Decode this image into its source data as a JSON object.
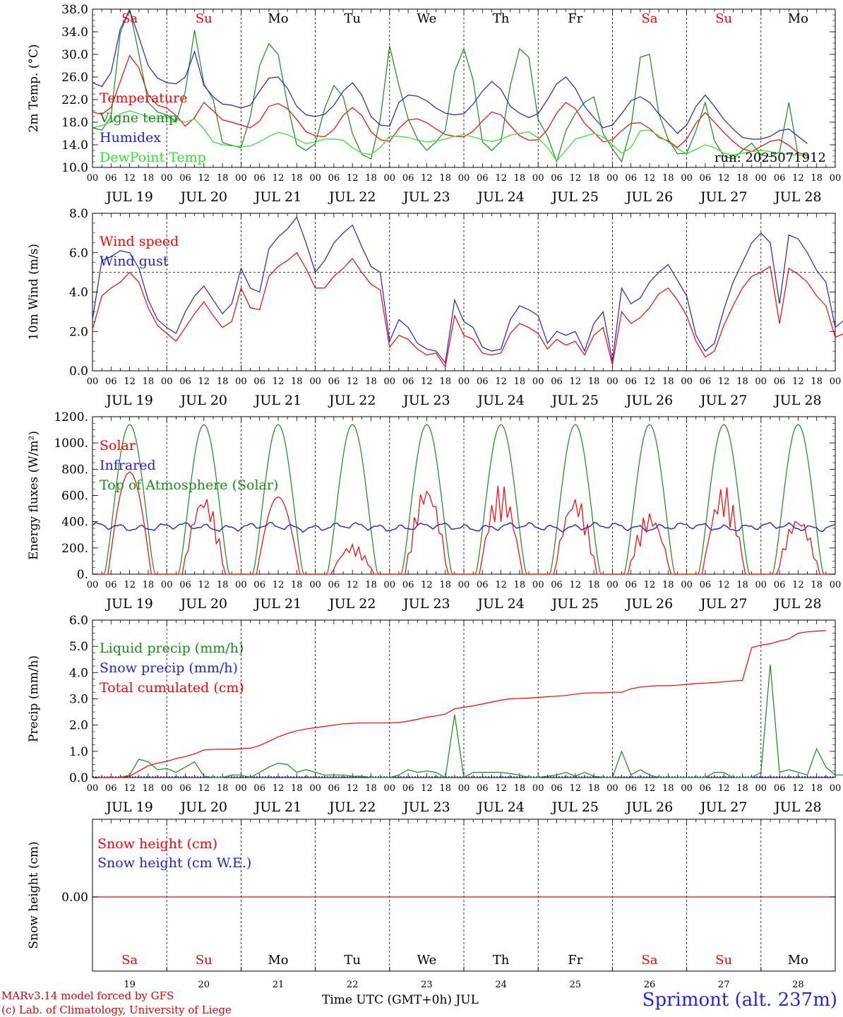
{
  "chart_data": [
    {
      "type": "line",
      "ylabel": "2m Temp. (°C)",
      "ylim": [
        10,
        38
      ],
      "yticks": [
        "10.0",
        "14.0",
        "18.0",
        "22.0",
        "26.0",
        "30.0",
        "34.0",
        "38.0"
      ],
      "run_label": "run: 2025071912",
      "legend_placement": "left",
      "time_step_hours": 3,
      "series": [
        {
          "name": "Temperature",
          "color": "#ff0000",
          "values": [
            19.8,
            19.4,
            20.6,
            25.2,
            29.8,
            27.6,
            22.8,
            21.0,
            20.5,
            19.2,
            17.3,
            18.8,
            21.5,
            20.0,
            18.4,
            18.0,
            17.5,
            17.0,
            18.2,
            20.8,
            21.3,
            20.4,
            18.5,
            16.3,
            15.6,
            15.4,
            16.7,
            19.2,
            20.6,
            19.2,
            16.3,
            14.9,
            14.6,
            16.9,
            18.4,
            18.6,
            17.9,
            16.8,
            15.8,
            15.5,
            15.4,
            16.4,
            18.2,
            19.8,
            19.3,
            17.4,
            15.6,
            14.8,
            14.9,
            16.7,
            19.6,
            21.5,
            20.4,
            17.8,
            16.2,
            14.5,
            14.9,
            16.5,
            17.8,
            17.9,
            16.9,
            15.3,
            14.7,
            13.5,
            15.0,
            17.8,
            19.7,
            18.0,
            16.2,
            14.6,
            13.3,
            12.8,
            13.7,
            14.6,
            14.9,
            13.9,
            12.6,
            12.2
          ]
        },
        {
          "name": "Vigne temp",
          "color": "#1a8a1a",
          "values": [
            17.0,
            16.6,
            19.0,
            33.8,
            38.0,
            30.0,
            21.5,
            19.8,
            19.3,
            18.0,
            23.5,
            34.3,
            24.8,
            22.0,
            14.4,
            13.9,
            13.5,
            19.0,
            28.0,
            31.9,
            30.0,
            21.2,
            14.0,
            13.0,
            14.2,
            20.4,
            24.5,
            22.5,
            16.0,
            12.3,
            11.5,
            18.5,
            31.5,
            24.5,
            18.6,
            15.0,
            13.0,
            14.5,
            16.5,
            27.0,
            31.0,
            25.5,
            14.5,
            13.0,
            14.6,
            24.5,
            31.0,
            29.5,
            18.5,
            15.5,
            11.0,
            16.5,
            19.5,
            21.5,
            22.5,
            16.0,
            13.3,
            11.0,
            17.0,
            29.5,
            30.0,
            19.5,
            15.0,
            12.4,
            12.5,
            16.5,
            21.5,
            14.7,
            12.0,
            11.5,
            13.0,
            14.3,
            12.2,
            11.9,
            12.7,
            21.5,
            12.2,
            12.0
          ]
        },
        {
          "name": "Humidex",
          "color": "#2020e0",
          "values": [
            25.0,
            24.3,
            26.8,
            34.5,
            37.8,
            33.0,
            28.0,
            25.8,
            25.0,
            24.8,
            26.0,
            30.5,
            24.5,
            22.5,
            21.2,
            21.0,
            20.5,
            21.0,
            23.5,
            25.8,
            26.0,
            24.0,
            20.8,
            19.3,
            19.0,
            19.4,
            21.0,
            23.5,
            25.0,
            22.8,
            19.0,
            17.5,
            17.3,
            21.5,
            22.8,
            22.6,
            21.8,
            20.5,
            19.6,
            19.3,
            19.5,
            21.2,
            23.5,
            25.2,
            23.8,
            20.8,
            19.6,
            18.8,
            19.5,
            22.0,
            24.8,
            26.0,
            24.0,
            20.8,
            18.8,
            17.0,
            17.5,
            19.5,
            21.8,
            22.5,
            21.5,
            19.5,
            17.8,
            16.0,
            17.5,
            20.8,
            22.8,
            20.8,
            18.5,
            16.8,
            15.3,
            15.0,
            15.0,
            15.5,
            16.5,
            16.8,
            15.5,
            14.2
          ]
        },
        {
          "name": "DewPoint Temp",
          "color": "#33dd33",
          "values": [
            17.0,
            17.4,
            18.0,
            19.5,
            20.0,
            19.5,
            18.8,
            18.6,
            18.8,
            18.5,
            18.0,
            18.6,
            16.8,
            14.5,
            14.0,
            13.8,
            13.7,
            13.8,
            14.5,
            15.5,
            16.2,
            15.8,
            15.0,
            14.2,
            14.5,
            15.0,
            15.0,
            14.8,
            13.5,
            12.5,
            12.3,
            13.5,
            15.5,
            15.5,
            15.3,
            14.8,
            14.5,
            14.7,
            15.0,
            15.5,
            15.8,
            15.4,
            14.9,
            14.6,
            15.0,
            15.7,
            16.0,
            16.3,
            15.2,
            13.5,
            11.2,
            13.0,
            15.0,
            15.5,
            16.0,
            15.4,
            14.0,
            12.5,
            13.5,
            16.5,
            16.6,
            15.6,
            14.5,
            13.3,
            12.4,
            13.2,
            14.0,
            13.5,
            12.5,
            12.2,
            12.5,
            12.8,
            13.0,
            12.8,
            12.5,
            12.3,
            12.2,
            12.0
          ]
        }
      ]
    },
    {
      "type": "line",
      "ylabel": "10m Wind (m/s)",
      "ylim": [
        0,
        8
      ],
      "yticks": [
        "0.0",
        "2.0",
        "4.0",
        "6.0",
        "8.0"
      ],
      "reference_line": 5,
      "legend_placement": "upper-left",
      "time_step_hours": 3,
      "series": [
        {
          "name": "Wind speed",
          "color": "#ff0000",
          "values": [
            2.1,
            3.8,
            4.2,
            4.5,
            5.0,
            4.5,
            3.2,
            2.3,
            1.9,
            1.5,
            2.2,
            2.9,
            3.5,
            2.8,
            2.2,
            2.5,
            4.2,
            3.2,
            3.1,
            4.8,
            5.3,
            5.6,
            6.0,
            5.2,
            4.2,
            4.2,
            4.8,
            5.2,
            5.7,
            5.0,
            4.4,
            4.1,
            1.2,
            1.8,
            1.6,
            1.1,
            0.8,
            0.9,
            0.2,
            2.8,
            1.8,
            1.6,
            0.9,
            0.8,
            0.9,
            1.9,
            2.4,
            2.2,
            1.9,
            1.1,
            1.6,
            1.3,
            1.5,
            0.8,
            1.8,
            2.2,
            0.3,
            3.0,
            2.4,
            2.7,
            3.2,
            3.9,
            4.2,
            3.6,
            2.8,
            1.5,
            0.7,
            1.0,
            2.3,
            3.3,
            4.2,
            4.8,
            5.0,
            5.3,
            2.4,
            5.2,
            4.9,
            4.5,
            3.8,
            3.3,
            1.7,
            1.9
          ]
        },
        {
          "name": "Wind gust",
          "color": "#2020e0",
          "values": [
            2.6,
            5.6,
            5.8,
            6.1,
            6.0,
            5.2,
            3.6,
            2.6,
            2.2,
            1.9,
            3.0,
            3.8,
            4.3,
            3.6,
            2.9,
            3.4,
            5.2,
            4.2,
            4.0,
            6.2,
            6.8,
            7.2,
            7.8,
            6.5,
            5.0,
            5.6,
            6.5,
            7.0,
            7.4,
            6.3,
            5.3,
            5.0,
            1.5,
            2.6,
            2.2,
            1.4,
            1.1,
            1.0,
            0.4,
            3.6,
            2.5,
            2.2,
            1.2,
            1.0,
            1.1,
            2.6,
            3.3,
            3.1,
            2.8,
            1.4,
            2.0,
            1.8,
            2.0,
            1.0,
            2.4,
            3.0,
            0.5,
            4.2,
            3.4,
            3.7,
            4.5,
            5.0,
            5.4,
            4.6,
            3.8,
            1.8,
            1.0,
            1.4,
            3.1,
            4.5,
            5.5,
            6.5,
            7.0,
            6.5,
            3.4,
            6.9,
            6.7,
            6.0,
            5.1,
            4.5,
            2.2,
            2.6
          ]
        }
      ]
    },
    {
      "type": "line",
      "ylabel": "Energy fluxes (W/m²)",
      "ylim": [
        0,
        1200
      ],
      "yticks": [
        "0.",
        "200.",
        "400.",
        "600.",
        "800.",
        "1000.",
        "1200."
      ],
      "legend_placement": "upper-left",
      "series": [
        {
          "name": "Solar",
          "color": "#ff0000",
          "peaks": [
            820,
            620,
            620,
            230,
            700,
            690,
            610,
            480,
            680,
            450
          ]
        },
        {
          "name": "Infrared",
          "color": "#2020e0",
          "level": 360
        },
        {
          "name": "Top of Atmosphere (Solar)",
          "color": "#1a8a1a",
          "peak": 1140
        }
      ]
    },
    {
      "type": "line",
      "ylabel": "Precip (mm/h)",
      "ylim": [
        0,
        6
      ],
      "yticks": [
        "0.0",
        "1.0",
        "2.0",
        "3.0",
        "4.0",
        "5.0",
        "6.0"
      ],
      "legend_placement": "upper-left",
      "time_step_hours": 3,
      "series": [
        {
          "name": "Liquid precip (mm/h)",
          "color": "#1a8a1a",
          "values": [
            0,
            0,
            0,
            0,
            0.1,
            0.7,
            0.6,
            0.3,
            0.35,
            0.2,
            0.4,
            0.6,
            0.05,
            0,
            0,
            0.1,
            0.1,
            0,
            0.2,
            0.4,
            0.55,
            0.5,
            0.2,
            0.3,
            0.2,
            0.1,
            0.1,
            0.1,
            0.05,
            0.05,
            0,
            0,
            0,
            0.1,
            0.3,
            0.2,
            0.25,
            0.2,
            0,
            2.4,
            0,
            0.2,
            0.2,
            0.2,
            0.2,
            0.15,
            0.1,
            0,
            0,
            0.05,
            0.1,
            0.2,
            0.05,
            0.2,
            0.05,
            0,
            0,
            1.0,
            0.1,
            0.3,
            0.1,
            0,
            0,
            0,
            0,
            0,
            0,
            0.2,
            0.2,
            0,
            0,
            0,
            0.2,
            4.3,
            0.2,
            0.3,
            0.2,
            0.1,
            1.1,
            0.4,
            0.1,
            0.1
          ]
        },
        {
          "name": "Snow precip (mm/h)",
          "color": "#2020e0",
          "values": [
            0
          ]
        },
        {
          "name": "Total cumulated (cm)",
          "color": "#ff0000",
          "values": [
            0,
            0,
            0,
            0,
            0.05,
            0.25,
            0.45,
            0.55,
            0.62,
            0.72,
            0.8,
            0.9,
            1.05,
            1.07,
            1.08,
            1.08,
            1.1,
            1.12,
            1.22,
            1.38,
            1.55,
            1.68,
            1.78,
            1.85,
            1.9,
            1.95,
            2.0,
            2.05,
            2.07,
            2.08,
            2.08,
            2.08,
            2.08,
            2.1,
            2.15,
            2.22,
            2.3,
            2.35,
            2.42,
            2.62,
            2.68,
            2.73,
            2.8,
            2.88,
            2.95,
            3.0,
            3.02,
            3.03,
            3.05,
            3.08,
            3.1,
            3.13,
            3.18,
            3.22,
            3.23,
            3.23,
            3.25,
            3.25,
            3.38,
            3.45,
            3.48,
            3.5,
            3.5,
            3.52,
            3.55,
            3.58,
            3.6,
            3.62,
            3.65,
            3.68,
            3.7,
            4.95,
            5.05,
            5.1,
            5.2,
            5.28,
            5.5,
            5.55,
            5.58,
            5.6
          ]
        }
      ]
    },
    {
      "type": "line",
      "ylabel": "Snow height (cm)",
      "ytick": "0.00",
      "legend_placement": "upper-left",
      "series": [
        {
          "name": "Snow height (cm)",
          "color": "#ff0000",
          "values": [
            0
          ]
        },
        {
          "name": "Snow height (cm W.E.)",
          "color": "#2020e0",
          "values": [
            0
          ]
        }
      ]
    }
  ],
  "x_axis": {
    "hour_ticks": [
      "00",
      "06",
      "12",
      "18"
    ],
    "last_tick": "00",
    "dates": [
      "JUL 19",
      "JUL 20",
      "JUL 21",
      "JUL 22",
      "JUL 23",
      "JUL 24",
      "JUL 25",
      "JUL 26",
      "JUL 27",
      "JUL 28"
    ],
    "day_names": [
      "Sa",
      "Su",
      "Mo",
      "Tu",
      "We",
      "Th",
      "Fr",
      "Sa",
      "Su",
      "Mo"
    ],
    "weekend_flags": [
      true,
      true,
      false,
      false,
      false,
      false,
      false,
      true,
      true,
      false
    ],
    "day_numbers": [
      "19",
      "20",
      "21",
      "22",
      "23",
      "24",
      "25",
      "26",
      "27",
      "28"
    ]
  },
  "footer": {
    "model": "MARv3.14 model forced by GFS",
    "copyright": "(c) Lab. of Climatology, University of Liege",
    "axis_title": "Time UTC (GMT+0h) JUL",
    "station": "Sprimont (alt. 237m)"
  },
  "colors": {
    "weekend": "#ff0000",
    "weekday": "#000000",
    "red": "#ff0000",
    "blue": "#2020e0",
    "green": "#1a8a1a",
    "lightgreen": "#33dd33"
  }
}
